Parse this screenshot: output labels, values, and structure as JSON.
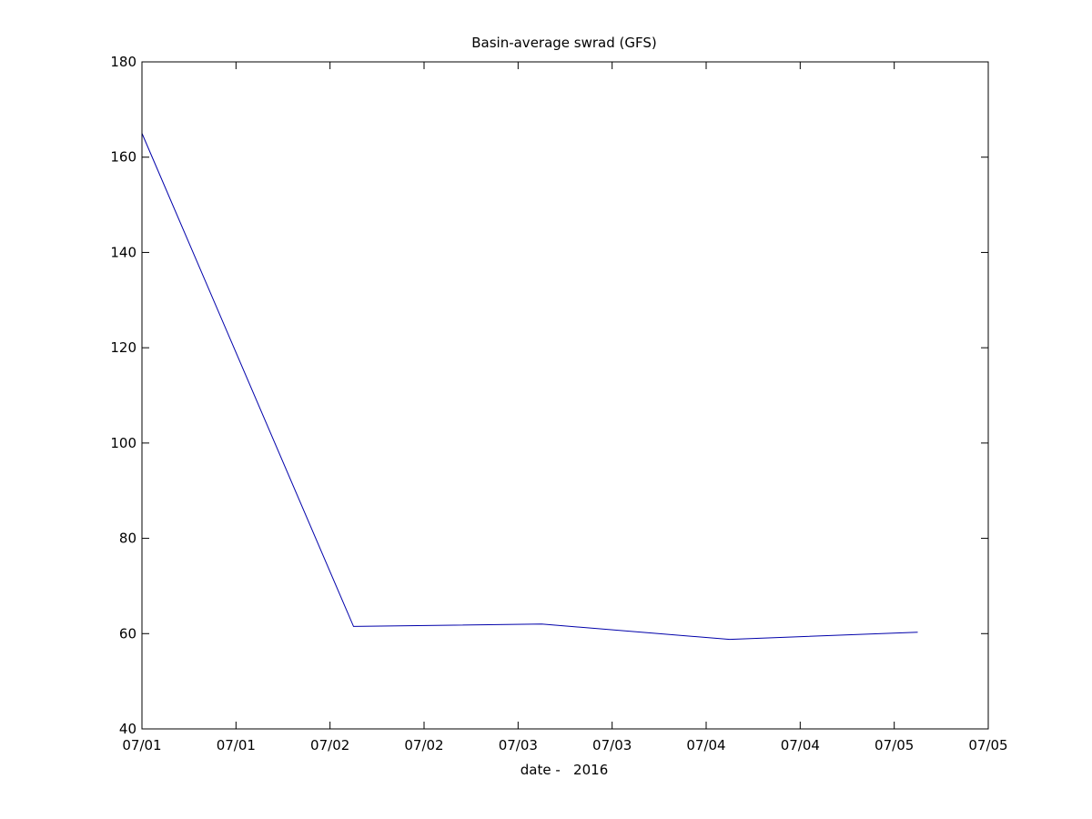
{
  "chart_data": {
    "type": "line",
    "title": "Basin-average swrad (GFS)",
    "xlabel": "date -   2016",
    "ylabel": "",
    "ylim": [
      40,
      180
    ],
    "yticks": [
      40,
      60,
      80,
      100,
      120,
      140,
      160,
      180
    ],
    "xlim": [
      "2016-07-01 00:00",
      "2016-07-05 12:00"
    ],
    "xticks": [
      {
        "at": "2016-07-01 00:00",
        "label": "07/01"
      },
      {
        "at": "2016-07-01 12:00",
        "label": "07/01"
      },
      {
        "at": "2016-07-02 00:00",
        "label": "07/02"
      },
      {
        "at": "2016-07-02 12:00",
        "label": "07/02"
      },
      {
        "at": "2016-07-03 00:00",
        "label": "07/03"
      },
      {
        "at": "2016-07-03 12:00",
        "label": "07/03"
      },
      {
        "at": "2016-07-04 00:00",
        "label": "07/04"
      },
      {
        "at": "2016-07-04 12:00",
        "label": "07/04"
      },
      {
        "at": "2016-07-05 00:00",
        "label": "07/05"
      },
      {
        "at": "2016-07-05 12:00",
        "label": "07/05"
      }
    ],
    "grid": false,
    "series": [
      {
        "color": "#0000aa",
        "points": [
          {
            "x": "2016-07-01 00:00",
            "y": 165.0
          },
          {
            "x": "2016-07-02 03:00",
            "y": 61.5
          },
          {
            "x": "2016-07-03 03:00",
            "y": 62.0
          },
          {
            "x": "2016-07-04 03:00",
            "y": 58.8
          },
          {
            "x": "2016-07-05 03:00",
            "y": 60.3
          }
        ]
      }
    ]
  }
}
